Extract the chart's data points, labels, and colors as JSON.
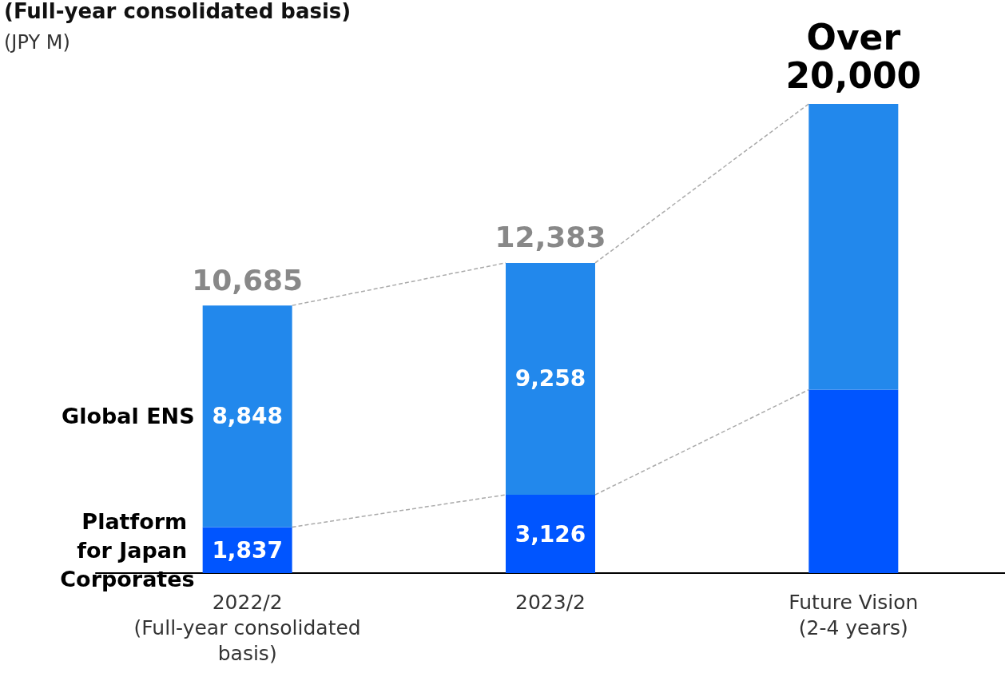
{
  "chart_data": {
    "type": "bar",
    "title": "(Full-year consolidated basis)",
    "subtitle": "(JPY M)",
    "categories": [
      "2022/2\n(Full-year consolidated\nbasis)",
      "2023/2",
      "Future Vision\n(2-4 years)"
    ],
    "stacked": true,
    "legend": false,
    "grid": false,
    "series": [
      {
        "name": "Platform for Japan Corporates",
        "color": "#0055ff",
        "values": [
          1837,
          3126,
          7320
        ],
        "value_labels": [
          "1,837",
          "3,126",
          null
        ]
      },
      {
        "name": "Global ENS",
        "color": "#2288ec",
        "values": [
          8848,
          9258,
          11410
        ],
        "value_labels": [
          "8,848",
          "9,258",
          null
        ]
      }
    ],
    "totals": [
      "10,685",
      "12,383",
      "Over\n20,000"
    ]
  }
}
